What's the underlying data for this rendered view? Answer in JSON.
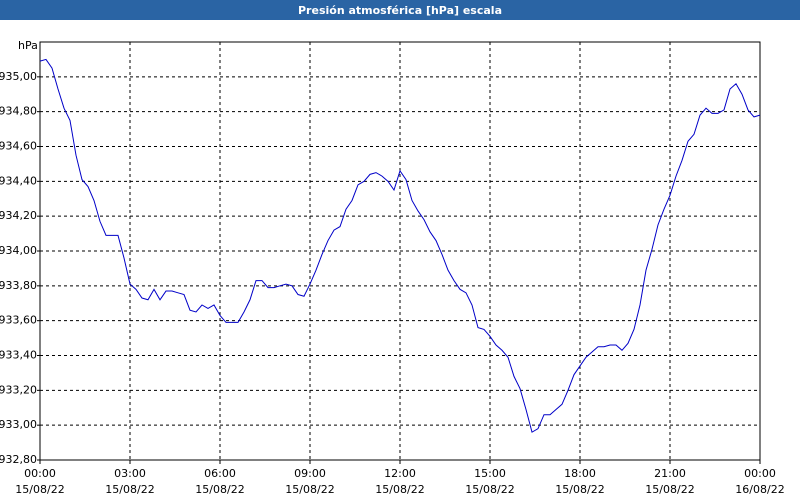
{
  "chart_data": {
    "type": "line",
    "title": "Presión atmosférica [hPa] escala",
    "y_unit": "hPa",
    "color": "#0000c8",
    "grid": true,
    "xlim": [
      0,
      24
    ],
    "xticks": [
      {
        "value": 0,
        "label": "00:00"
      },
      {
        "value": 3,
        "label": "03:00"
      },
      {
        "value": 6,
        "label": "06:00"
      },
      {
        "value": 9,
        "label": "09:00"
      },
      {
        "value": 12,
        "label": "12:00"
      },
      {
        "value": 15,
        "label": "15:00"
      },
      {
        "value": 18,
        "label": "18:00"
      },
      {
        "value": 21,
        "label": "21:00"
      },
      {
        "value": 24,
        "label": "00:00"
      }
    ],
    "xtick_dates": [
      "15/08/22",
      "15/08/22",
      "15/08/22",
      "15/08/22",
      "15/08/22",
      "15/08/22",
      "15/08/22",
      "15/08/22",
      "16/08/22"
    ],
    "ylim": [
      932.8,
      935.2
    ],
    "yticks": [
      {
        "value": 932.8,
        "label": "932,80"
      },
      {
        "value": 933.0,
        "label": "933,00"
      },
      {
        "value": 933.2,
        "label": "933,20"
      },
      {
        "value": 933.4,
        "label": "933,40"
      },
      {
        "value": 933.6,
        "label": "933,60"
      },
      {
        "value": 933.8,
        "label": "933,80"
      },
      {
        "value": 934.0,
        "label": "934,00"
      },
      {
        "value": 934.2,
        "label": "934,20"
      },
      {
        "value": 934.4,
        "label": "934,40"
      },
      {
        "value": 934.6,
        "label": "934,60"
      },
      {
        "value": 934.8,
        "label": "934,80"
      },
      {
        "value": 935.0,
        "label": "935,00"
      }
    ],
    "x": [
      0,
      0.2,
      0.4,
      0.6,
      0.8,
      1,
      1.2,
      1.4,
      1.6,
      1.8,
      2,
      2.2,
      2.4,
      2.6,
      2.8,
      3,
      3.2,
      3.4,
      3.6,
      3.8,
      4,
      4.2,
      4.4,
      4.6,
      4.8,
      5,
      5.2,
      5.4,
      5.6,
      5.8,
      6,
      6.2,
      6.4,
      6.6,
      6.8,
      7,
      7.2,
      7.4,
      7.6,
      7.8,
      8,
      8.2,
      8.4,
      8.6,
      8.8,
      9,
      9.2,
      9.4,
      9.6,
      9.8,
      10,
      10.2,
      10.4,
      10.6,
      10.8,
      11,
      11.2,
      11.4,
      11.6,
      11.8,
      12,
      12.2,
      12.4,
      12.6,
      12.8,
      13,
      13.2,
      13.4,
      13.6,
      13.8,
      14,
      14.2,
      14.4,
      14.6,
      14.8,
      15,
      15.2,
      15.4,
      15.6,
      15.8,
      16,
      16.2,
      16.4,
      16.6,
      16.8,
      17,
      17.2,
      17.4,
      17.6,
      17.8,
      18,
      18.2,
      18.4,
      18.6,
      18.8,
      19,
      19.2,
      19.4,
      19.6,
      19.8,
      20,
      20.2,
      20.4,
      20.6,
      20.8,
      21,
      21.2,
      21.4,
      21.6,
      21.8,
      22,
      22.2,
      22.4,
      22.6,
      22.8,
      23,
      23.2,
      23.4,
      23.6,
      23.8,
      24
    ],
    "values": [
      935.09,
      935.1,
      935.05,
      934.93,
      934.82,
      934.75,
      934.55,
      934.41,
      934.37,
      934.29,
      934.17,
      934.09,
      934.09,
      934.09,
      933.96,
      933.81,
      933.78,
      933.73,
      933.72,
      933.78,
      933.72,
      933.77,
      933.77,
      933.76,
      933.75,
      933.66,
      933.65,
      933.69,
      933.67,
      933.69,
      933.63,
      933.59,
      933.59,
      933.59,
      933.65,
      933.72,
      933.83,
      933.83,
      933.79,
      933.79,
      933.8,
      933.81,
      933.8,
      933.75,
      933.74,
      933.81,
      933.89,
      933.98,
      934.06,
      934.12,
      934.14,
      934.24,
      934.29,
      934.38,
      934.4,
      934.44,
      934.45,
      934.43,
      934.4,
      934.35,
      934.46,
      934.41,
      934.29,
      934.23,
      934.18,
      934.11,
      934.06,
      933.98,
      933.89,
      933.83,
      933.78,
      933.76,
      933.69,
      933.56,
      933.55,
      933.51,
      933.46,
      933.43,
      933.39,
      933.28,
      933.21,
      933.09,
      932.96,
      932.98,
      933.06,
      933.06,
      933.09,
      933.12,
      933.2,
      933.29,
      933.34,
      933.39,
      933.42,
      933.45,
      933.45,
      933.46,
      933.46,
      933.43,
      933.47,
      933.55,
      933.69,
      933.89,
      934.01,
      934.15,
      934.24,
      934.32,
      934.43,
      934.52,
      934.63,
      934.67,
      934.78,
      934.82,
      934.79,
      934.79,
      934.81,
      934.93,
      934.96,
      934.9,
      934.81,
      934.77,
      934.78
    ]
  }
}
